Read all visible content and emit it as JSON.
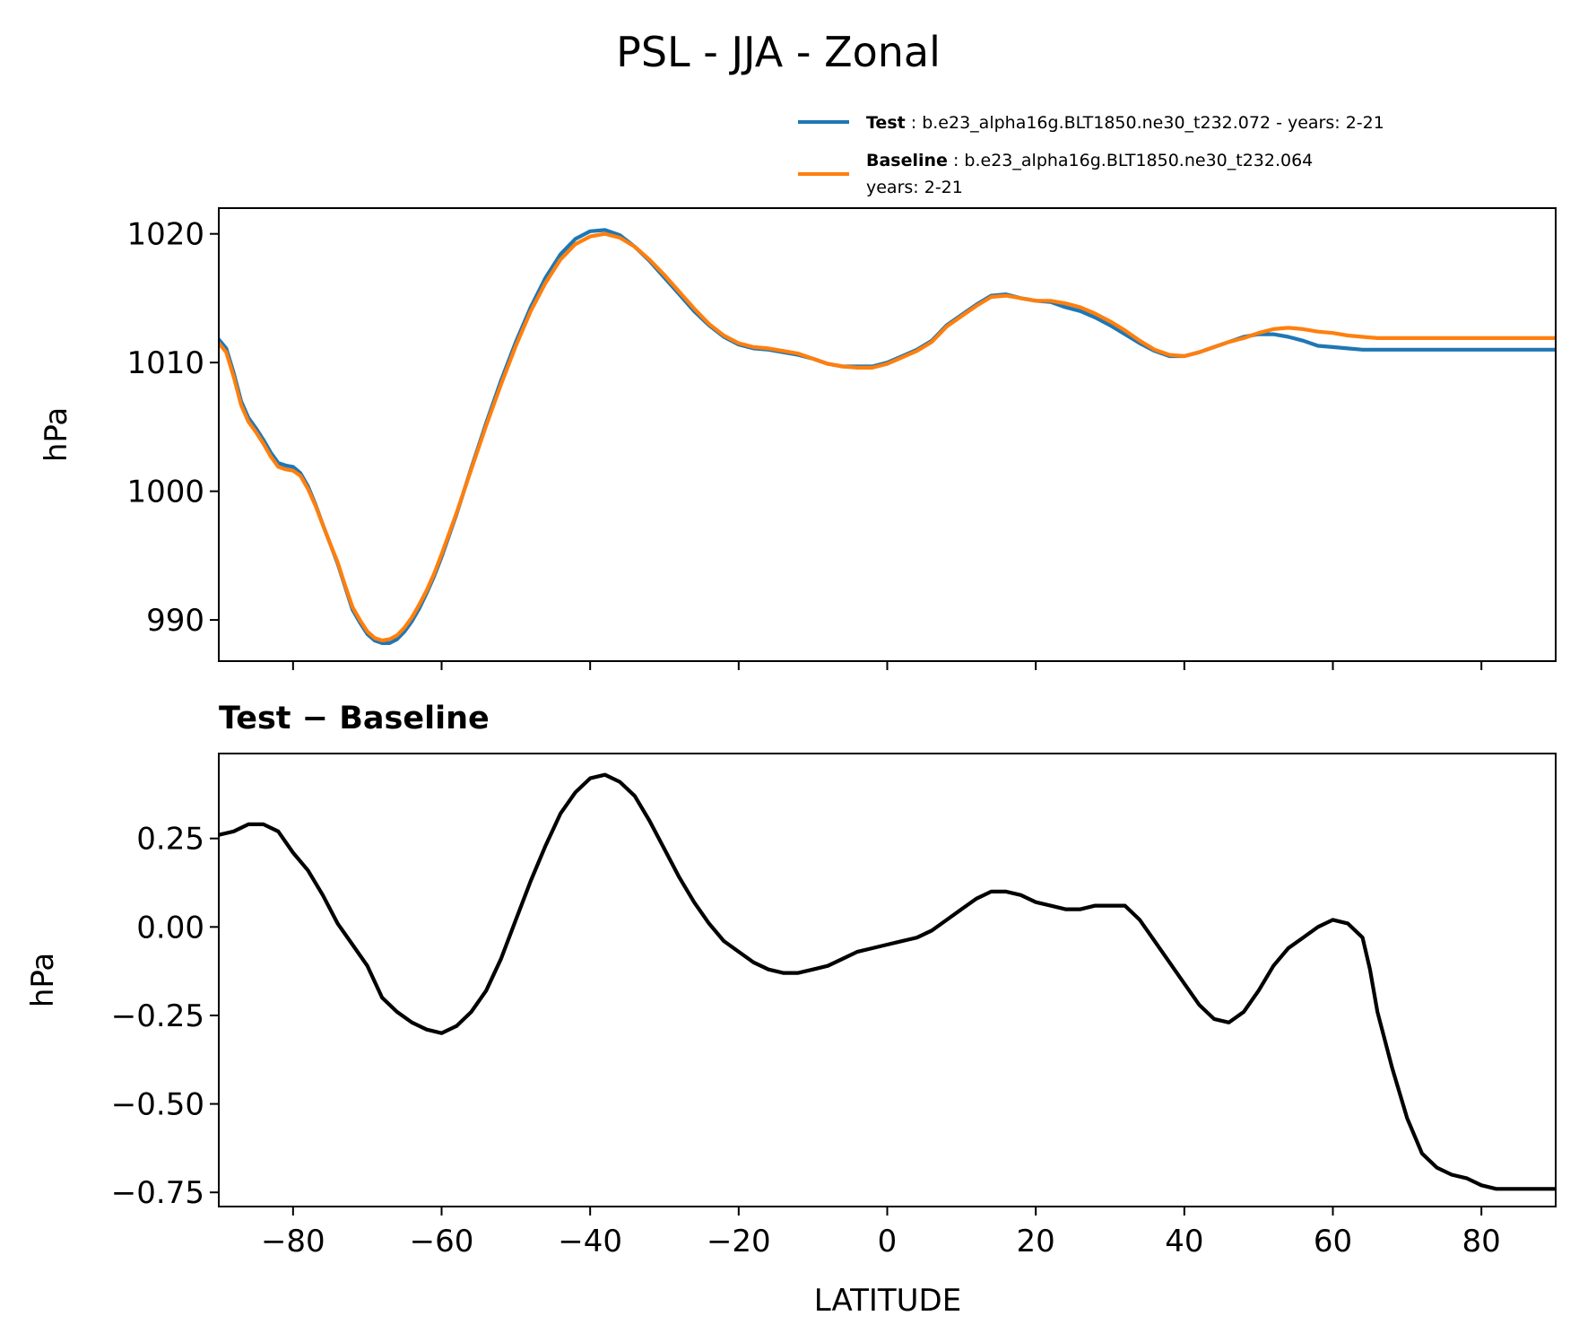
{
  "figure": {
    "title": "PSL - JJA - Zonal",
    "xlabel": "LATITUDE"
  },
  "legend": {
    "entries": [
      {
        "bold": "Test",
        "rest": ": b.e23_alpha16g.BLT1850.ne30_t232.072 - years: 2-21",
        "line2": "",
        "color": "#1f77b4"
      },
      {
        "bold": "Baseline",
        "rest": ": b.e23_alpha16g.BLT1850.ne30_t232.064",
        "line2": "years: 2-21",
        "color": "#ff7f0e"
      }
    ]
  },
  "chart_data": [
    {
      "type": "line",
      "title": "",
      "xlabel": "",
      "ylabel": "hPa",
      "xlim": [
        -90,
        90
      ],
      "ylim": [
        986.8,
        1022
      ],
      "yticks": [
        990,
        1000,
        1010,
        1020
      ],
      "xticks": [
        -80,
        -60,
        -40,
        -20,
        0,
        20,
        40,
        60,
        80
      ],
      "show_xtick_labels": false,
      "grid": false,
      "legend_position": "above-right",
      "series": [
        {
          "name": "Test",
          "color": "#1f77b4",
          "x": [
            -90,
            -89,
            -88,
            -87,
            -86,
            -85,
            -84,
            -83,
            -82,
            -81,
            -80,
            -79,
            -78,
            -77,
            -76,
            -75,
            -74,
            -73,
            -72,
            -71,
            -70,
            -69,
            -68,
            -67,
            -66,
            -65,
            -64,
            -63,
            -62,
            -61,
            -60,
            -58,
            -56,
            -54,
            -52,
            -50,
            -48,
            -46,
            -44,
            -42,
            -40,
            -38,
            -36,
            -34,
            -32,
            -30,
            -28,
            -26,
            -24,
            -22,
            -20,
            -18,
            -16,
            -14,
            -12,
            -10,
            -8,
            -6,
            -4,
            -2,
            0,
            2,
            4,
            6,
            8,
            10,
            12,
            14,
            16,
            18,
            20,
            22,
            24,
            26,
            28,
            30,
            32,
            34,
            36,
            38,
            40,
            42,
            44,
            46,
            48,
            50,
            52,
            54,
            56,
            58,
            60,
            62,
            64,
            66,
            68,
            70,
            72,
            74,
            76,
            78,
            80,
            82,
            84,
            86,
            88,
            90
          ],
          "values": [
            1011.8,
            1011.1,
            1009.2,
            1007.0,
            1005.7,
            1004.9,
            1004.0,
            1003.0,
            1002.2,
            1002.0,
            1001.9,
            1001.4,
            1000.4,
            999.0,
            997.4,
            995.9,
            994.4,
            992.6,
            990.8,
            989.8,
            988.9,
            988.4,
            988.2,
            988.2,
            988.5,
            989.1,
            989.9,
            990.9,
            992.1,
            993.4,
            994.9,
            998.2,
            1001.8,
            1005.3,
            1008.6,
            1011.6,
            1014.3,
            1016.6,
            1018.4,
            1019.6,
            1020.2,
            1020.3,
            1019.9,
            1019.0,
            1017.9,
            1016.6,
            1015.3,
            1014.0,
            1012.9,
            1012.0,
            1011.4,
            1011.1,
            1011.0,
            1010.8,
            1010.6,
            1010.3,
            1009.9,
            1009.7,
            1009.7,
            1009.7,
            1010.0,
            1010.5,
            1011.0,
            1011.7,
            1012.9,
            1013.7,
            1014.5,
            1015.2,
            1015.3,
            1015.0,
            1014.8,
            1014.7,
            1014.3,
            1014.0,
            1013.5,
            1012.9,
            1012.2,
            1011.5,
            1010.9,
            1010.5,
            1010.5,
            1010.8,
            1011.2,
            1011.6,
            1012.0,
            1012.2,
            1012.2,
            1012.0,
            1011.7,
            1011.3,
            1011.2,
            1011.1,
            1011.0,
            1011.0,
            1011.0,
            1011.0,
            1011.0,
            1011.0,
            1011.0,
            1011.0,
            1011.0,
            1011.0,
            1011.0,
            1011.0,
            1011.0,
            1011.0
          ]
        },
        {
          "name": "Baseline",
          "color": "#ff7f0e",
          "x": [
            -90,
            -89,
            -88,
            -87,
            -86,
            -85,
            -84,
            -83,
            -82,
            -81,
            -80,
            -79,
            -78,
            -77,
            -76,
            -75,
            -74,
            -73,
            -72,
            -71,
            -70,
            -69,
            -68,
            -67,
            -66,
            -65,
            -64,
            -63,
            -62,
            -61,
            -60,
            -58,
            -56,
            -54,
            -52,
            -50,
            -48,
            -46,
            -44,
            -42,
            -40,
            -38,
            -36,
            -34,
            -32,
            -30,
            -28,
            -26,
            -24,
            -22,
            -20,
            -18,
            -16,
            -14,
            -12,
            -10,
            -8,
            -6,
            -4,
            -2,
            0,
            2,
            4,
            6,
            8,
            10,
            12,
            14,
            16,
            18,
            20,
            22,
            24,
            26,
            28,
            30,
            32,
            34,
            36,
            38,
            40,
            42,
            44,
            46,
            48,
            50,
            52,
            54,
            56,
            58,
            60,
            62,
            64,
            66,
            68,
            70,
            72,
            74,
            76,
            78,
            80,
            82,
            84,
            86,
            88,
            90
          ],
          "values": [
            1011.5,
            1010.8,
            1008.9,
            1006.7,
            1005.4,
            1004.6,
            1003.7,
            1002.7,
            1001.9,
            1001.7,
            1001.6,
            1001.2,
            1000.2,
            998.9,
            997.4,
            995.9,
            994.5,
            992.7,
            991.0,
            990.0,
            989.1,
            988.6,
            988.4,
            988.5,
            988.8,
            989.4,
            990.2,
            991.2,
            992.3,
            993.6,
            995.1,
            998.3,
            1001.7,
            1005.1,
            1008.3,
            1011.3,
            1014.0,
            1016.2,
            1018.0,
            1019.2,
            1019.8,
            1020.0,
            1019.7,
            1019.0,
            1018.0,
            1016.8,
            1015.5,
            1014.2,
            1013.0,
            1012.1,
            1011.5,
            1011.2,
            1011.1,
            1010.9,
            1010.7,
            1010.3,
            1009.9,
            1009.7,
            1009.6,
            1009.6,
            1009.9,
            1010.4,
            1010.9,
            1011.6,
            1012.8,
            1013.6,
            1014.4,
            1015.1,
            1015.2,
            1015.0,
            1014.8,
            1014.8,
            1014.6,
            1014.3,
            1013.8,
            1013.2,
            1012.5,
            1011.7,
            1011.0,
            1010.6,
            1010.5,
            1010.8,
            1011.2,
            1011.6,
            1011.9,
            1012.3,
            1012.6,
            1012.7,
            1012.6,
            1012.4,
            1012.3,
            1012.1,
            1012.0,
            1011.9,
            1011.9,
            1011.9,
            1011.9,
            1011.9,
            1011.9,
            1011.9,
            1011.9,
            1011.9,
            1011.9,
            1011.9,
            1011.9,
            1011.9
          ]
        }
      ]
    },
    {
      "type": "line",
      "title": "Test − Baseline",
      "xlabel": "LATITUDE",
      "ylabel": "hPa",
      "xlim": [
        -90,
        90
      ],
      "ylim": [
        -0.79,
        0.49
      ],
      "yticks": [
        0.25,
        0.0,
        -0.25,
        -0.5,
        -0.75
      ],
      "ytick_labels": [
        "0.25",
        "0.00",
        "−0.25",
        "−0.50",
        "−0.75"
      ],
      "xticks": [
        -80,
        -60,
        -40,
        -20,
        0,
        20,
        40,
        60,
        80
      ],
      "xtick_labels": [
        "−80",
        "−60",
        "−40",
        "−20",
        "0",
        "20",
        "40",
        "60",
        "80"
      ],
      "show_xtick_labels": true,
      "grid": false,
      "series": [
        {
          "name": "",
          "color": "#000000",
          "x": [
            -90,
            -88,
            -86,
            -84,
            -82,
            -80,
            -78,
            -76,
            -74,
            -72,
            -70,
            -68,
            -66,
            -64,
            -62,
            -60,
            -58,
            -56,
            -54,
            -52,
            -50,
            -48,
            -46,
            -44,
            -42,
            -40,
            -38,
            -36,
            -34,
            -32,
            -30,
            -28,
            -26,
            -24,
            -22,
            -20,
            -18,
            -16,
            -14,
            -12,
            -10,
            -8,
            -6,
            -4,
            -2,
            0,
            2,
            4,
            6,
            8,
            10,
            12,
            14,
            16,
            18,
            20,
            22,
            24,
            26,
            28,
            30,
            32,
            34,
            36,
            38,
            40,
            42,
            44,
            46,
            48,
            50,
            52,
            54,
            56,
            58,
            60,
            62,
            64,
            65,
            66,
            68,
            70,
            72,
            74,
            76,
            78,
            80,
            82,
            84,
            86,
            88,
            90
          ],
          "values": [
            0.26,
            0.27,
            0.29,
            0.29,
            0.27,
            0.21,
            0.16,
            0.09,
            0.01,
            -0.05,
            -0.11,
            -0.2,
            -0.24,
            -0.27,
            -0.29,
            -0.3,
            -0.28,
            -0.24,
            -0.18,
            -0.09,
            0.02,
            0.13,
            0.23,
            0.32,
            0.38,
            0.42,
            0.43,
            0.41,
            0.37,
            0.3,
            0.22,
            0.14,
            0.07,
            0.01,
            -0.04,
            -0.07,
            -0.1,
            -0.12,
            -0.13,
            -0.13,
            -0.12,
            -0.11,
            -0.09,
            -0.07,
            -0.06,
            -0.05,
            -0.04,
            -0.03,
            -0.01,
            0.02,
            0.05,
            0.08,
            0.1,
            0.1,
            0.09,
            0.07,
            0.06,
            0.05,
            0.05,
            0.06,
            0.06,
            0.06,
            0.02,
            -0.04,
            -0.1,
            -0.16,
            -0.22,
            -0.26,
            -0.27,
            -0.24,
            -0.18,
            -0.11,
            -0.06,
            -0.03,
            0.0,
            0.02,
            0.01,
            -0.03,
            -0.12,
            -0.24,
            -0.4,
            -0.54,
            -0.64,
            -0.68,
            -0.7,
            -0.71,
            -0.73,
            -0.74,
            -0.74,
            -0.74,
            -0.74,
            -0.74
          ]
        }
      ]
    }
  ]
}
